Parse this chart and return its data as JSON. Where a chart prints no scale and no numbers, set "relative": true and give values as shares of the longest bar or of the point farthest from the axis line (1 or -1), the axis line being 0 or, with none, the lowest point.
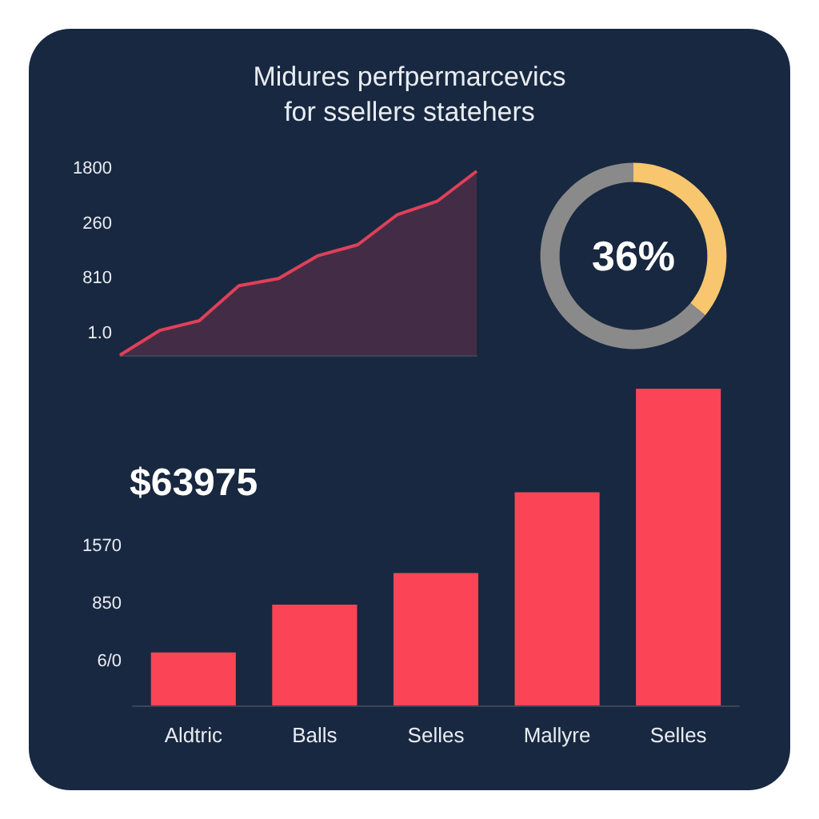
{
  "chart_data": [
    {
      "type": "area",
      "title": "Midures perfpermarcevics\nfor ssellers statehers",
      "categories": [
        null,
        null,
        null,
        null,
        null,
        null,
        null,
        null,
        null,
        null
      ],
      "values": [
        0,
        0.134,
        0.187,
        0.377,
        0.416,
        0.541,
        0.6,
        0.764,
        0.836,
        1
      ],
      "color": "#e0405a",
      "relative": true,
      "marker": "none",
      "annotations": [
        "1800",
        "260",
        "810",
        "1.0"
      ]
    },
    {
      "type": "donut",
      "categories": [
        null,
        null
      ],
      "values": [
        36,
        64
      ],
      "colors": [
        "#f7c66e",
        "#8a8a8a"
      ],
      "annotations": [
        "36%"
      ]
    },
    {
      "type": "bar",
      "title": "$63975",
      "categories": [
        "Aldtric",
        "Balls",
        "Selles",
        "Mallyre",
        "Selles"
      ],
      "values": [
        0.167,
        0.318,
        0.418,
        0.673,
        1
      ],
      "color": "#fb4557",
      "relative": true,
      "annotations": [
        "1570",
        "850",
        "6/0"
      ]
    }
  ]
}
